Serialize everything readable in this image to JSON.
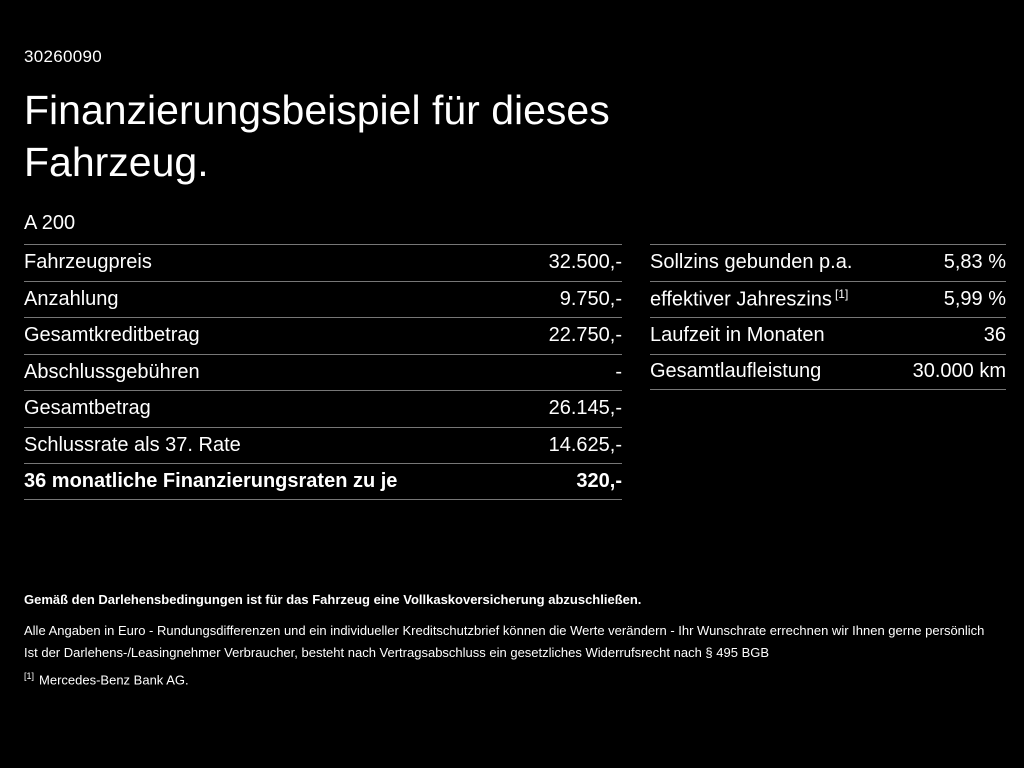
{
  "page": {
    "id": "30260090",
    "title_lines": [
      "Finanzierungsbeispiel für dieses",
      "Fahrzeug."
    ],
    "model": "A 200"
  },
  "left_table": {
    "rows": [
      {
        "label": "Fahrzeugpreis",
        "value": "32.500,-"
      },
      {
        "label": "Anzahlung",
        "value": "9.750,-"
      },
      {
        "label": "Gesamtkreditbetrag",
        "value": "22.750,-"
      },
      {
        "label": "Abschlussgebühren",
        "value": "-"
      },
      {
        "label": "Gesamtbetrag",
        "value": "26.145,-"
      },
      {
        "label": "Schlussrate als 37. Rate",
        "value": "14.625,-"
      },
      {
        "label": "36 monatliche Finanzierungsraten zu je",
        "value": "320,-"
      }
    ]
  },
  "right_table": {
    "rows": [
      {
        "label": "Sollzins gebunden p.a.",
        "value": "5,83 %"
      },
      {
        "label": "effektiver Jahreszins",
        "sup": "[1]",
        "value": "5,99 %"
      },
      {
        "label": "Laufzeit in Monaten",
        "value": "36"
      },
      {
        "label": "Gesamtlaufleistung",
        "value": "30.000 km"
      }
    ]
  },
  "footer": {
    "insurance_note": "Gemäß den Darlehensbedingungen ist für das Fahrzeug eine Vollkaskoversicherung abzuschließen.",
    "notes": [
      "Alle Angaben in Euro - Rundungsdifferenzen und ein individueller Kreditschutzbrief können die Werte verändern - Ihr Wunschrate errechnen wir Ihnen gerne persönlich",
      "Ist der Darlehens-/Leasingnehmer Verbraucher, besteht nach Vertragsabschluss ein gesetzliches Widerrufsrecht nach § 495 BGB"
    ],
    "footnote_marker": "[1]",
    "footnote_text": "Mercedes-Benz Bank AG."
  },
  "colors": {
    "background": "#000000",
    "text": "#ffffff",
    "divider": "#777777"
  }
}
